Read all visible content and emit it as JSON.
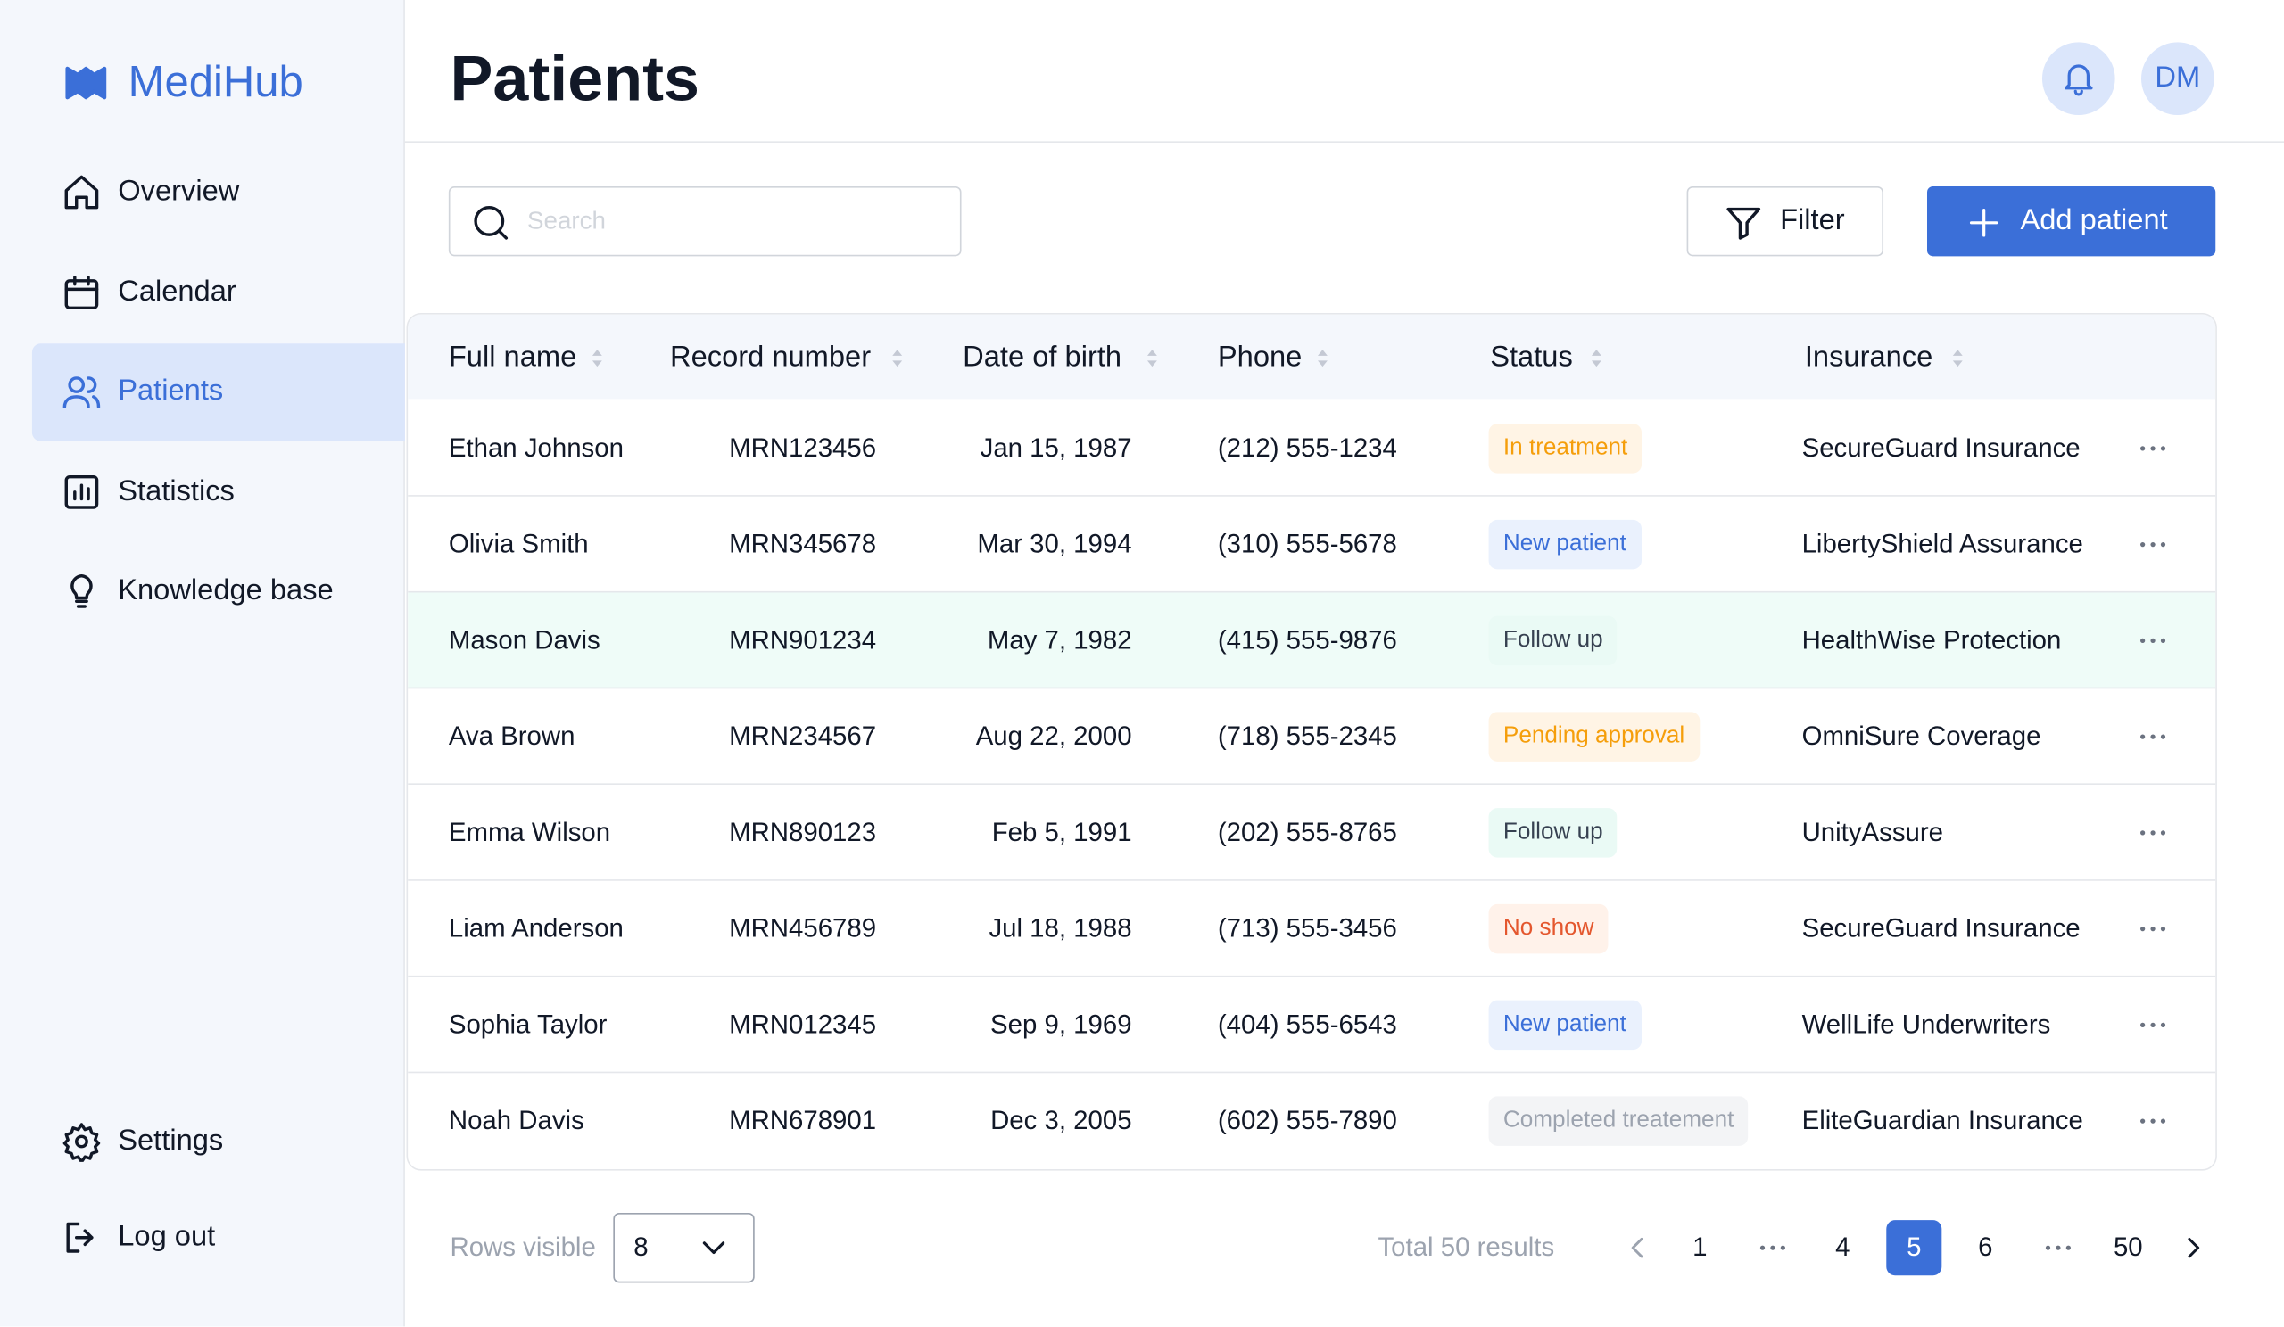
{
  "sidebar": {
    "brand": "MediHub",
    "nav": [
      "Overview",
      "Calendar",
      "Patients",
      "Statistics",
      "Knowledge base"
    ],
    "bottom_nav": [
      "Settings",
      "Log out"
    ]
  },
  "header": {
    "title": "Patients",
    "avatar": "DM"
  },
  "toolbar": {
    "search_placeholder": "Search",
    "filter": "Filter",
    "add": "Add patient"
  },
  "table": {
    "columns": [
      "Full name",
      "Record number",
      "Date of birth",
      "Phone",
      "Status",
      "Insurance"
    ],
    "rows": [
      {
        "name": "Ethan Johnson",
        "record": "MRN123456",
        "dob": "Jan 15, 1987",
        "phone": "(212) 555-1234",
        "status": "In treatment",
        "status_color": "#f59e0b",
        "status_bg": "#fff4e5",
        "insurance": "SecureGuard Insurance"
      },
      {
        "name": "Olivia Smith",
        "record": "MRN345678",
        "dob": "Mar 30, 1994",
        "phone": "(310) 555-5678",
        "status": "New patient",
        "status_color": "#3b6fd8",
        "status_bg": "#eaf1fd",
        "insurance": "LibertyShield Assurance"
      },
      {
        "name": "Mason Davis",
        "record": "MRN901234",
        "dob": "May 7, 1982",
        "phone": "(415) 555-9876",
        "status": "Follow up",
        "status_color": "#374151",
        "status_bg": "#eafaf5",
        "insurance": "HealthWise Protection"
      },
      {
        "name": "Ava Brown",
        "record": "MRN234567",
        "dob": "Aug 22, 2000",
        "phone": "(718) 555-2345",
        "status": "Pending approval",
        "status_color": "#f59e0b",
        "status_bg": "#fff4e5",
        "insurance": "OmniSure Coverage"
      },
      {
        "name": "Emma Wilson",
        "record": "MRN890123",
        "dob": "Feb 5, 1991",
        "phone": "(202) 555-8765",
        "status": "Follow up",
        "status_color": "#374151",
        "status_bg": "#eafaf5",
        "insurance": "UnityAssure"
      },
      {
        "name": "Liam Anderson",
        "record": "MRN456789",
        "dob": "Jul 18, 1988",
        "phone": "(713) 555-3456",
        "status": "No show",
        "status_color": "#e4572e",
        "status_bg": "#fff2ea",
        "insurance": "SecureGuard Insurance"
      },
      {
        "name": "Sophia Taylor",
        "record": "MRN012345",
        "dob": "Sep 9, 1969",
        "phone": "(404) 555-6543",
        "status": "New patient",
        "status_color": "#3b6fd8",
        "status_bg": "#eaf1fd",
        "insurance": "WellLife Underwriters"
      },
      {
        "name": "Noah Davis",
        "record": "MRN678901",
        "dob": "Dec 3, 2005",
        "phone": "(602) 555-7890",
        "status": "Completed treatement",
        "status_color": "#9ca3af",
        "status_bg": "#f3f4f6",
        "insurance": "EliteGuardian Insurance"
      }
    ]
  },
  "footer": {
    "rows_visible_label": "Rows visible",
    "rows_visible": 8,
    "total": "Total 50 results",
    "pages": [
      1,
      4,
      5,
      6,
      50
    ]
  }
}
